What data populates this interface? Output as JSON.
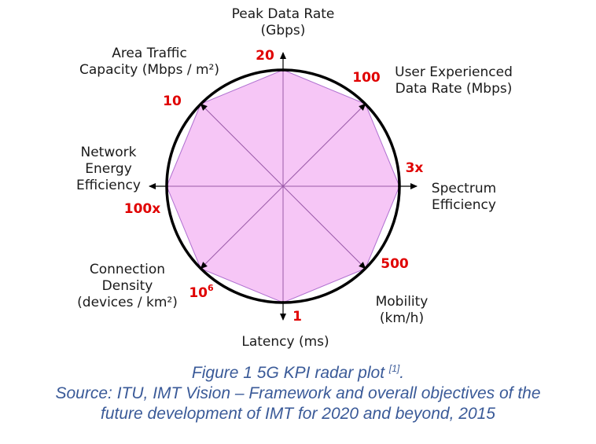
{
  "chart_data": {
    "type": "radar",
    "axes": [
      {
        "label_lines": [
          "Peak Data Rate",
          "(Gbps)"
        ],
        "value": "20",
        "value_sup": ""
      },
      {
        "label_lines": [
          "User Experienced",
          "Data Rate (Mbps)"
        ],
        "value": "100",
        "value_sup": ""
      },
      {
        "label_lines": [
          "Spectrum",
          "Efficiency"
        ],
        "value": "3x",
        "value_sup": ""
      },
      {
        "label_lines": [
          "Mobility",
          "(km/h)"
        ],
        "value": "500",
        "value_sup": ""
      },
      {
        "label_lines": [
          "Latency (ms)"
        ],
        "value": "1",
        "value_sup": ""
      },
      {
        "label_lines": [
          "Connection",
          "Density",
          "(devices / km²)"
        ],
        "value": "10",
        "value_sup": "6"
      },
      {
        "label_lines": [
          "Network",
          "Energy",
          "Efficiency"
        ],
        "value": "100x",
        "value_sup": ""
      },
      {
        "label_lines": [
          "Area Traffic",
          "Capacity (Mbps / m²)"
        ],
        "value": "10",
        "value_sup": ""
      }
    ],
    "fill_color": "#f6c6f6",
    "polygon_stroke": "#b070d0",
    "circle_color": "#000000",
    "value_color": "#e00000"
  },
  "caption": {
    "line1": "Figure 1 5G KPI radar plot ",
    "line1_ref": "[1]",
    "line1_end": ".",
    "line2": "Source: ITU, IMT Vision – Framework and overall objectives of the",
    "line3": "future development of IMT for 2020 and beyond, 2015"
  }
}
